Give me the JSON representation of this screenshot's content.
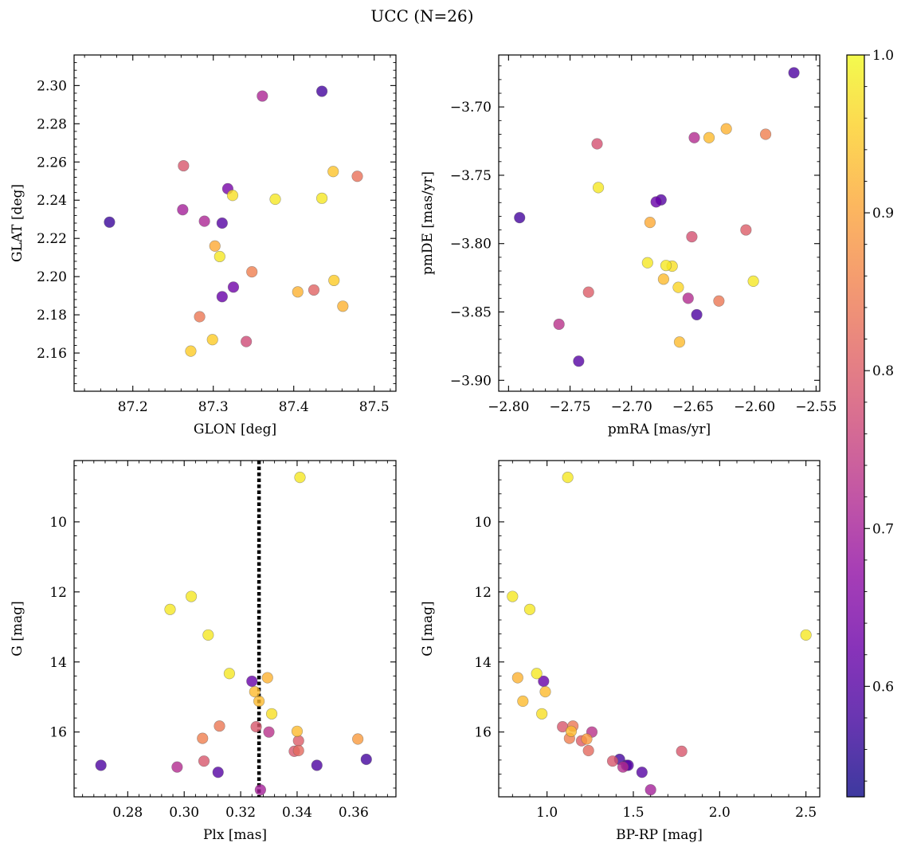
{
  "title": "UCC (N=26)",
  "colormap": {
    "name": "plasma",
    "range": [
      0.53,
      1.0
    ],
    "ticks": [
      0.6,
      0.7,
      0.8,
      0.9,
      1.0
    ],
    "tick_labels": [
      "0.6",
      "0.7",
      "0.8",
      "0.9",
      "1.0"
    ],
    "alpha": 0.8
  },
  "chart_data": [
    {
      "type": "scatter",
      "xlabel": "GLON [deg]",
      "ylabel": "GLAT [deg]",
      "xlim": [
        87.127,
        87.527
      ],
      "ylim": [
        2.14,
        2.316
      ],
      "xticks": [
        87.2,
        87.3,
        87.4,
        87.5
      ],
      "xtick_labels": [
        "87.2",
        "87.3",
        "87.4",
        "87.5"
      ],
      "yticks": [
        2.16,
        2.18,
        2.2,
        2.22,
        2.24,
        2.26,
        2.28,
        2.3
      ],
      "ytick_labels": [
        "2.16",
        "2.18",
        "2.20",
        "2.22",
        "2.24",
        "2.26",
        "2.28",
        "2.30"
      ],
      "points": [
        {
          "x": 87.171,
          "y": 2.2285,
          "c": 0.57
        },
        {
          "x": 87.262,
          "y": 2.235,
          "c": 0.7
        },
        {
          "x": 87.263,
          "y": 2.258,
          "c": 0.79
        },
        {
          "x": 87.272,
          "y": 2.161,
          "c": 0.95
        },
        {
          "x": 87.283,
          "y": 2.179,
          "c": 0.84
        },
        {
          "x": 87.289,
          "y": 2.229,
          "c": 0.71
        },
        {
          "x": 87.299,
          "y": 2.167,
          "c": 0.95
        },
        {
          "x": 87.302,
          "y": 2.216,
          "c": 0.91
        },
        {
          "x": 87.308,
          "y": 2.2105,
          "c": 0.98
        },
        {
          "x": 87.311,
          "y": 2.1895,
          "c": 0.62
        },
        {
          "x": 87.311,
          "y": 2.228,
          "c": 0.6
        },
        {
          "x": 87.318,
          "y": 2.246,
          "c": 0.64
        },
        {
          "x": 87.324,
          "y": 2.2425,
          "c": 0.97
        },
        {
          "x": 87.325,
          "y": 2.1945,
          "c": 0.63
        },
        {
          "x": 87.341,
          "y": 2.166,
          "c": 0.77
        },
        {
          "x": 87.348,
          "y": 2.2025,
          "c": 0.85
        },
        {
          "x": 87.361,
          "y": 2.2945,
          "c": 0.71
        },
        {
          "x": 87.377,
          "y": 2.2405,
          "c": 0.98
        },
        {
          "x": 87.405,
          "y": 2.192,
          "c": 0.92
        },
        {
          "x": 87.425,
          "y": 2.193,
          "c": 0.81
        },
        {
          "x": 87.435,
          "y": 2.297,
          "c": 0.58
        },
        {
          "x": 87.435,
          "y": 2.241,
          "c": 0.98
        },
        {
          "x": 87.449,
          "y": 2.255,
          "c": 0.94
        },
        {
          "x": 87.45,
          "y": 2.198,
          "c": 0.95
        },
        {
          "x": 87.461,
          "y": 2.1845,
          "c": 0.92
        },
        {
          "x": 87.479,
          "y": 2.2525,
          "c": 0.83
        }
      ]
    },
    {
      "type": "scatter",
      "xlabel": "pmRA [mas/yr]",
      "ylabel": "pmDE [mas/yr]",
      "xlim": [
        -2.808,
        -2.547
      ],
      "ylim": [
        -3.908,
        -3.662
      ],
      "xticks": [
        -2.8,
        -2.75,
        -2.7,
        -2.65,
        -2.6,
        -2.55
      ],
      "xtick_labels": [
        "−2.80",
        "−2.75",
        "−2.70",
        "−2.65",
        "−2.60",
        "−2.55"
      ],
      "yticks": [
        -3.9,
        -3.85,
        -3.8,
        -3.75,
        -3.7
      ],
      "ytick_labels": [
        "−3.90",
        "−3.85",
        "−3.80",
        "−3.75",
        "−3.70"
      ],
      "points": [
        {
          "x": -2.791,
          "y": -3.781,
          "c": 0.58
        },
        {
          "x": -2.759,
          "y": -3.859,
          "c": 0.73
        },
        {
          "x": -2.743,
          "y": -3.886,
          "c": 0.6
        },
        {
          "x": -2.735,
          "y": -3.8355,
          "c": 0.8
        },
        {
          "x": -2.728,
          "y": -3.727,
          "c": 0.78
        },
        {
          "x": -2.727,
          "y": -3.759,
          "c": 0.98
        },
        {
          "x": -2.687,
          "y": -3.814,
          "c": 0.98
        },
        {
          "x": -2.685,
          "y": -3.7845,
          "c": 0.91
        },
        {
          "x": -2.68,
          "y": -3.7695,
          "c": 0.62
        },
        {
          "x": -2.676,
          "y": -3.768,
          "c": 0.6
        },
        {
          "x": -2.674,
          "y": -3.826,
          "c": 0.93
        },
        {
          "x": -2.672,
          "y": -3.816,
          "c": 0.98
        },
        {
          "x": -2.667,
          "y": -3.8165,
          "c": 0.97
        },
        {
          "x": -2.662,
          "y": -3.832,
          "c": 0.96
        },
        {
          "x": -2.661,
          "y": -3.872,
          "c": 0.93
        },
        {
          "x": -2.654,
          "y": -3.84,
          "c": 0.72
        },
        {
          "x": -2.651,
          "y": -3.795,
          "c": 0.78
        },
        {
          "x": -2.649,
          "y": -3.7225,
          "c": 0.72
        },
        {
          "x": -2.647,
          "y": -3.852,
          "c": 0.59
        },
        {
          "x": -2.637,
          "y": -3.7225,
          "c": 0.93
        },
        {
          "x": -2.629,
          "y": -3.842,
          "c": 0.84
        },
        {
          "x": -2.623,
          "y": -3.716,
          "c": 0.92
        },
        {
          "x": -2.607,
          "y": -3.79,
          "c": 0.8
        },
        {
          "x": -2.601,
          "y": -3.8275,
          "c": 0.98
        },
        {
          "x": -2.591,
          "y": -3.72,
          "c": 0.85
        },
        {
          "x": -2.568,
          "y": -3.675,
          "c": 0.59
        }
      ]
    },
    {
      "type": "scatter",
      "xlabel": "Plx [mas]",
      "ylabel": "G [mag]",
      "xlim": [
        0.261,
        0.375
      ],
      "ylim": [
        17.85,
        8.25
      ],
      "y_inverted": true,
      "vline_x": 0.3265,
      "xticks": [
        0.28,
        0.3,
        0.32,
        0.34,
        0.36
      ],
      "xtick_labels": [
        "0.28",
        "0.30",
        "0.32",
        "0.34",
        "0.36"
      ],
      "yticks": [
        10,
        12,
        14,
        16
      ],
      "ytick_labels": [
        "10",
        "12",
        "14",
        "16"
      ],
      "points": [
        {
          "x": 0.2705,
          "y": 16.95,
          "c": 0.59
        },
        {
          "x": 0.295,
          "y": 12.5,
          "c": 0.98
        },
        {
          "x": 0.2975,
          "y": 17.0,
          "c": 0.72
        },
        {
          "x": 0.3025,
          "y": 12.13,
          "c": 0.98
        },
        {
          "x": 0.3065,
          "y": 16.18,
          "c": 0.85
        },
        {
          "x": 0.307,
          "y": 16.83,
          "c": 0.79
        },
        {
          "x": 0.3085,
          "y": 13.23,
          "c": 0.98
        },
        {
          "x": 0.312,
          "y": 17.15,
          "c": 0.6
        },
        {
          "x": 0.3125,
          "y": 15.83,
          "c": 0.84
        },
        {
          "x": 0.316,
          "y": 14.33,
          "c": 0.98
        },
        {
          "x": 0.324,
          "y": 14.55,
          "c": 0.62
        },
        {
          "x": 0.325,
          "y": 14.85,
          "c": 0.93
        },
        {
          "x": 0.3255,
          "y": 15.85,
          "c": 0.79
        },
        {
          "x": 0.3265,
          "y": 15.12,
          "c": 0.93
        },
        {
          "x": 0.327,
          "y": 17.65,
          "c": 0.7
        },
        {
          "x": 0.3295,
          "y": 14.45,
          "c": 0.92
        },
        {
          "x": 0.33,
          "y": 16.0,
          "c": 0.73
        },
        {
          "x": 0.331,
          "y": 15.48,
          "c": 0.97
        },
        {
          "x": 0.339,
          "y": 16.55,
          "c": 0.79
        },
        {
          "x": 0.34,
          "y": 15.98,
          "c": 0.93
        },
        {
          "x": 0.3405,
          "y": 16.25,
          "c": 0.8
        },
        {
          "x": 0.3405,
          "y": 16.53,
          "c": 0.82
        },
        {
          "x": 0.341,
          "y": 8.73,
          "c": 0.98
        },
        {
          "x": 0.347,
          "y": 16.95,
          "c": 0.59
        },
        {
          "x": 0.3615,
          "y": 16.2,
          "c": 0.89
        },
        {
          "x": 0.3645,
          "y": 16.78,
          "c": 0.58
        }
      ]
    },
    {
      "type": "scatter",
      "xlabel": "BP-RP [mag]",
      "ylabel": "G [mag]",
      "xlim": [
        0.72,
        2.58
      ],
      "ylim": [
        17.85,
        8.25
      ],
      "y_inverted": true,
      "xticks": [
        1.0,
        1.5,
        2.0,
        2.5
      ],
      "xtick_labels": [
        "1.0",
        "1.5",
        "2.0",
        "2.5"
      ],
      "yticks": [
        10,
        12,
        14,
        16
      ],
      "ytick_labels": [
        "10",
        "12",
        "14",
        "16"
      ],
      "points": [
        {
          "x": 0.8,
          "y": 12.13,
          "c": 0.98
        },
        {
          "x": 0.83,
          "y": 14.45,
          "c": 0.92
        },
        {
          "x": 0.86,
          "y": 15.12,
          "c": 0.93
        },
        {
          "x": 0.9,
          "y": 12.5,
          "c": 0.98
        },
        {
          "x": 0.94,
          "y": 14.33,
          "c": 0.98
        },
        {
          "x": 0.97,
          "y": 15.48,
          "c": 0.97
        },
        {
          "x": 0.98,
          "y": 14.55,
          "c": 0.62
        },
        {
          "x": 0.99,
          "y": 14.85,
          "c": 0.93
        },
        {
          "x": 1.09,
          "y": 15.85,
          "c": 0.79
        },
        {
          "x": 1.12,
          "y": 8.73,
          "c": 0.98
        },
        {
          "x": 1.13,
          "y": 16.18,
          "c": 0.85
        },
        {
          "x": 1.14,
          "y": 15.98,
          "c": 0.93
        },
        {
          "x": 1.15,
          "y": 15.83,
          "c": 0.84
        },
        {
          "x": 1.2,
          "y": 16.25,
          "c": 0.8
        },
        {
          "x": 1.23,
          "y": 16.2,
          "c": 0.89
        },
        {
          "x": 1.24,
          "y": 16.53,
          "c": 0.82
        },
        {
          "x": 1.26,
          "y": 16.0,
          "c": 0.73
        },
        {
          "x": 1.38,
          "y": 16.83,
          "c": 0.79
        },
        {
          "x": 1.42,
          "y": 16.78,
          "c": 0.58
        },
        {
          "x": 1.44,
          "y": 17.0,
          "c": 0.72
        },
        {
          "x": 1.46,
          "y": 16.95,
          "c": 0.59
        },
        {
          "x": 1.47,
          "y": 16.95,
          "c": 0.6
        },
        {
          "x": 1.55,
          "y": 17.15,
          "c": 0.6
        },
        {
          "x": 1.6,
          "y": 17.65,
          "c": 0.7
        },
        {
          "x": 1.78,
          "y": 16.55,
          "c": 0.79
        },
        {
          "x": 2.5,
          "y": 13.23,
          "c": 0.98
        }
      ]
    }
  ]
}
